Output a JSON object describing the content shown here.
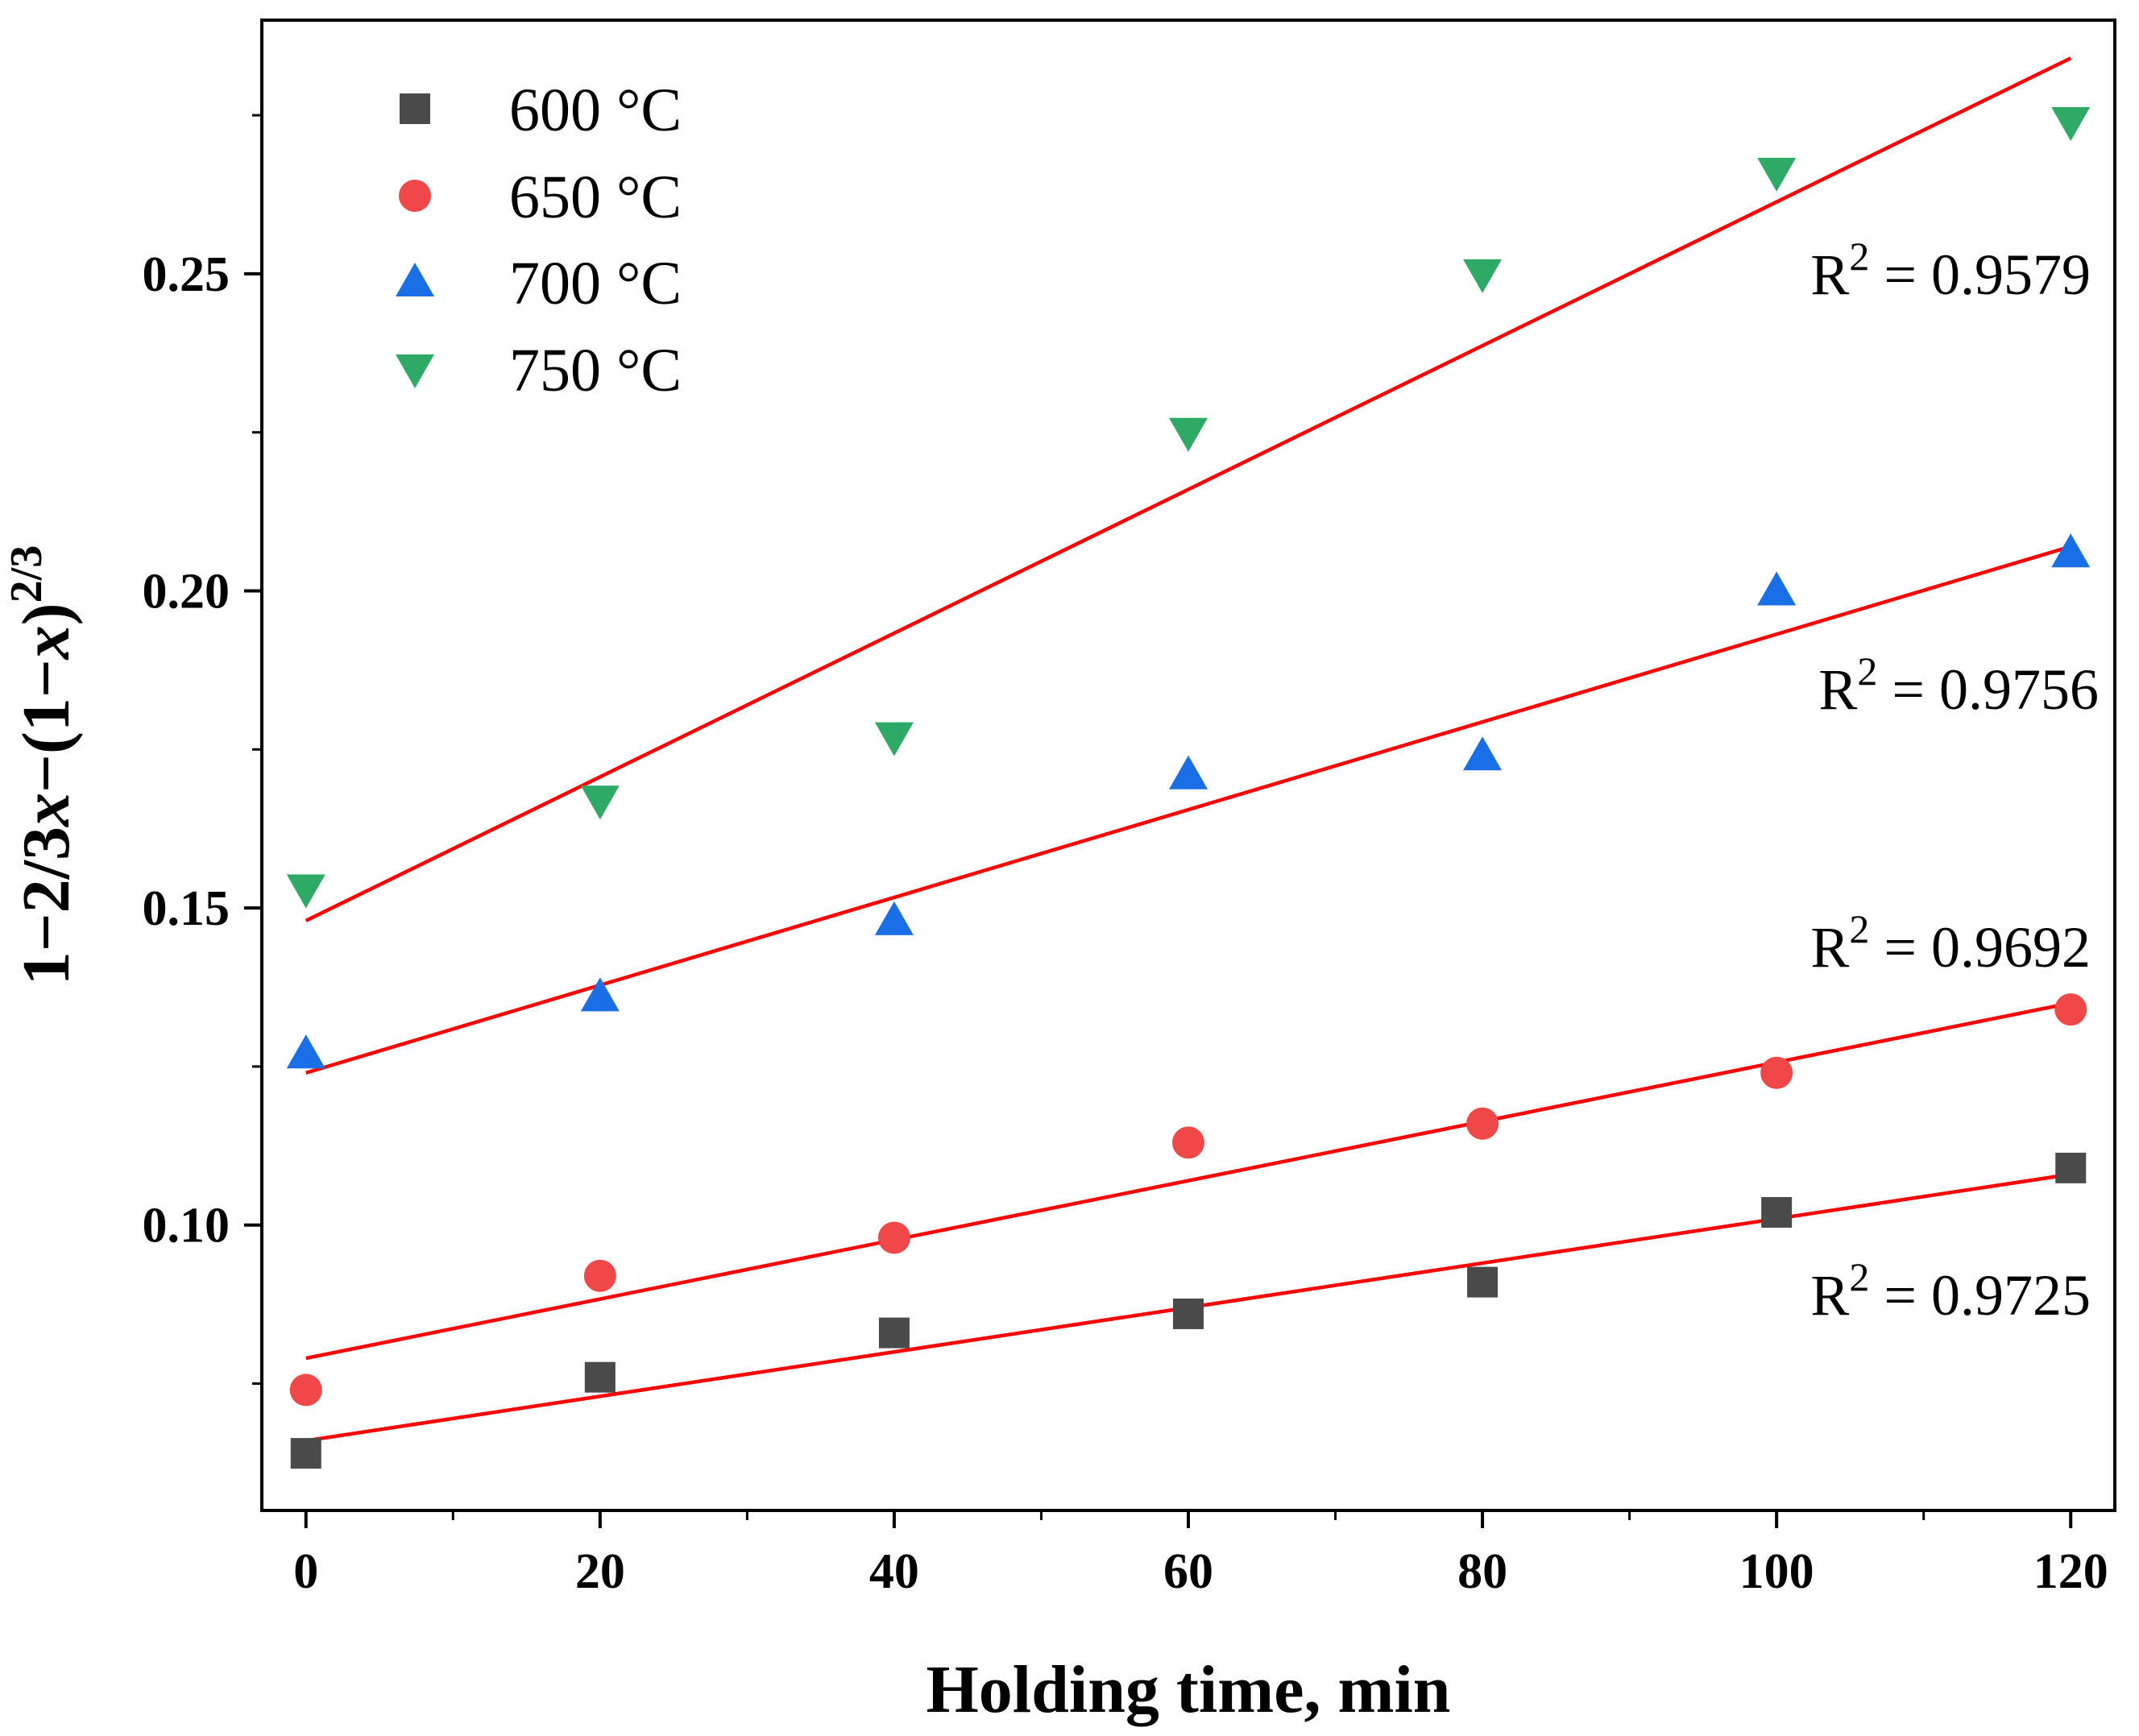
{
  "chart_data": {
    "type": "scatter",
    "title": "",
    "xlabel": "Holding time, min",
    "ylabel": {
      "parts": [
        "1−2/3",
        "x",
        "−(1−",
        "x",
        ")"
      ],
      "superscript": "2/3"
    },
    "xlim": [
      -3,
      123
    ],
    "ylim": [
      0.055,
      0.29
    ],
    "x_ticks": [
      0,
      20,
      40,
      60,
      80,
      100,
      120
    ],
    "x_tick_labels": [
      "0",
      "20",
      "40",
      "60",
      "80",
      "100",
      "120"
    ],
    "y_ticks": [
      0.1,
      0.15,
      0.2,
      0.25
    ],
    "y_tick_labels": [
      "0.10",
      "0.15",
      "0.20",
      "0.25"
    ],
    "grid": false,
    "legend_position": "top-left",
    "x": [
      0,
      20,
      40,
      60,
      80,
      100,
      120
    ],
    "series": [
      {
        "name": "600 °C",
        "marker": "square",
        "color": "#4a4a4a",
        "values": [
          0.064,
          0.076,
          0.083,
          0.086,
          0.091,
          0.102,
          0.109
        ],
        "fit": {
          "x0": 0,
          "y0": 0.066,
          "x1": 120,
          "y1": 0.108
        },
        "r2_label": {
          "prefix": "R",
          "sup": "2",
          "suffix": " = 0.9725"
        }
      },
      {
        "name": "650 °C",
        "marker": "circle",
        "color": "#f04848",
        "values": [
          0.074,
          0.092,
          0.098,
          0.113,
          0.116,
          0.124,
          0.134
        ],
        "fit": {
          "x0": 0,
          "y0": 0.079,
          "x1": 120,
          "y1": 0.135
        },
        "r2_label": {
          "prefix": "R",
          "sup": "2",
          "suffix": " = 0.9692"
        }
      },
      {
        "name": "700 °C",
        "marker": "triangle-up",
        "color": "#1a6ee6",
        "values": [
          0.127,
          0.136,
          0.148,
          0.171,
          0.174,
          0.2,
          0.206
        ],
        "fit": {
          "x0": 0,
          "y0": 0.124,
          "x1": 120,
          "y1": 0.207
        },
        "r2_label": {
          "prefix": "R",
          "sup": "2",
          "suffix": " = 0.9756"
        }
      },
      {
        "name": "750 °C",
        "marker": "triangle-down",
        "color": "#2faa66",
        "values": [
          0.153,
          0.167,
          0.177,
          0.225,
          0.25,
          0.266,
          0.274
        ],
        "fit": {
          "x0": 0,
          "y0": 0.148,
          "x1": 120,
          "y1": 0.284
        },
        "r2_label": {
          "prefix": "R",
          "sup": "2",
          "suffix": " = 0.9579"
        }
      }
    ],
    "fit_line_color": "#ff0000"
  }
}
